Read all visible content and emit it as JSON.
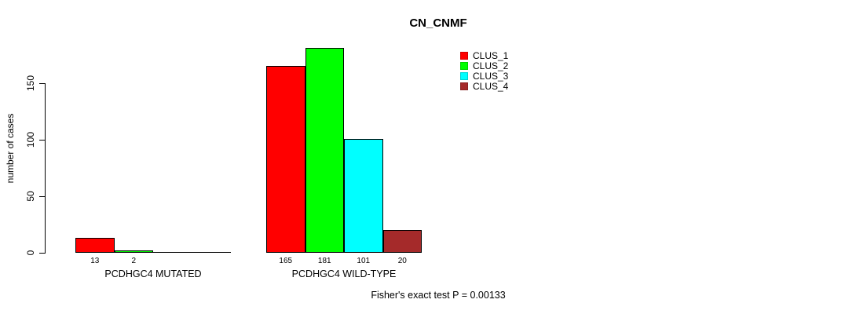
{
  "title": "CN_CNMF",
  "chart_data": {
    "type": "bar",
    "title": "CN_CNMF",
    "xlabel": "",
    "ylabel": "number of cases",
    "ylim": [
      0,
      150
    ],
    "yticks": [
      0,
      50,
      100,
      150
    ],
    "grid": false,
    "legend_position": "top-right",
    "series": [
      {
        "name": "CLUS_1",
        "color": "#ff0000"
      },
      {
        "name": "CLUS_2",
        "color": "#00ff00"
      },
      {
        "name": "CLUS_3",
        "color": "#00ffff"
      },
      {
        "name": "CLUS_4",
        "color": "#a52a2a"
      }
    ],
    "groups": [
      {
        "label": "PCDHGC4 MUTATED",
        "values": [
          13,
          2,
          0,
          0
        ],
        "value_labels": [
          "13",
          "2",
          "",
          ""
        ]
      },
      {
        "label": "PCDHGC4 WILD-TYPE",
        "values": [
          165,
          181,
          101,
          20
        ],
        "value_labels": [
          "165",
          "181",
          "101",
          "20"
        ]
      }
    ],
    "annotation": "Fisher's exact test P = 0.00133"
  }
}
